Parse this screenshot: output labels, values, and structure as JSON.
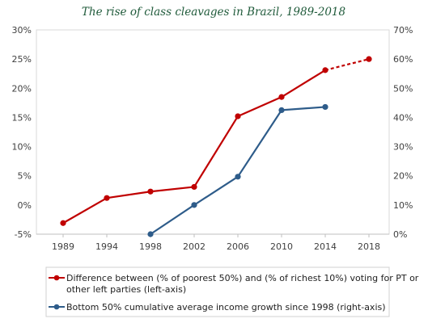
{
  "chart_data": {
    "type": "line",
    "title": "The rise of class cleavages in Brazil, 1989-2018",
    "categories": [
      "1989",
      "1994",
      "1998",
      "2002",
      "2006",
      "2010",
      "2014",
      "2018"
    ],
    "left_axis": {
      "ylim": [
        -5,
        30
      ],
      "ticks": [
        -5,
        0,
        5,
        10,
        15,
        20,
        25,
        30
      ],
      "tick_labels": [
        "-5%",
        "0%",
        "5%",
        "10%",
        "15%",
        "20%",
        "25%",
        "30%"
      ]
    },
    "right_axis": {
      "ylim": [
        0,
        70
      ],
      "ticks": [
        0,
        10,
        20,
        30,
        40,
        50,
        60,
        70
      ],
      "tick_labels": [
        "0%",
        "10%",
        "20%",
        "30%",
        "40%",
        "50%",
        "60%",
        "70%"
      ]
    },
    "grid": false,
    "legend_position": "bottom",
    "series": [
      {
        "name": "Difference between (% of poorest 50%) and (% of richest 10%) voting for PT or other left parties (left-axis)",
        "legend_lines": [
          "Difference between (% of poorest 50%) and (% of richest 10%) voting for PT or",
          "other left parties (left-axis)"
        ],
        "axis": "left",
        "color": "#c00000",
        "x": [
          "1989",
          "1994",
          "1998",
          "2002",
          "2006",
          "2010",
          "2014",
          "2018"
        ],
        "values": [
          -3.1,
          1.2,
          2.3,
          3.1,
          15.2,
          18.5,
          23.1,
          25.0
        ],
        "dashed_last_segment": true
      },
      {
        "name": "Bottom 50% cumulative average income growth since 1998 (right-axis)",
        "legend_lines": [
          "Bottom 50% cumulative average income growth since 1998 (right-axis)"
        ],
        "axis": "right",
        "color": "#2e5c8a",
        "x": [
          "1998",
          "2002",
          "2006",
          "2010",
          "2014"
        ],
        "values": [
          0,
          10,
          19.7,
          42.5,
          43.6
        ],
        "dashed_last_segment": false
      }
    ]
  }
}
